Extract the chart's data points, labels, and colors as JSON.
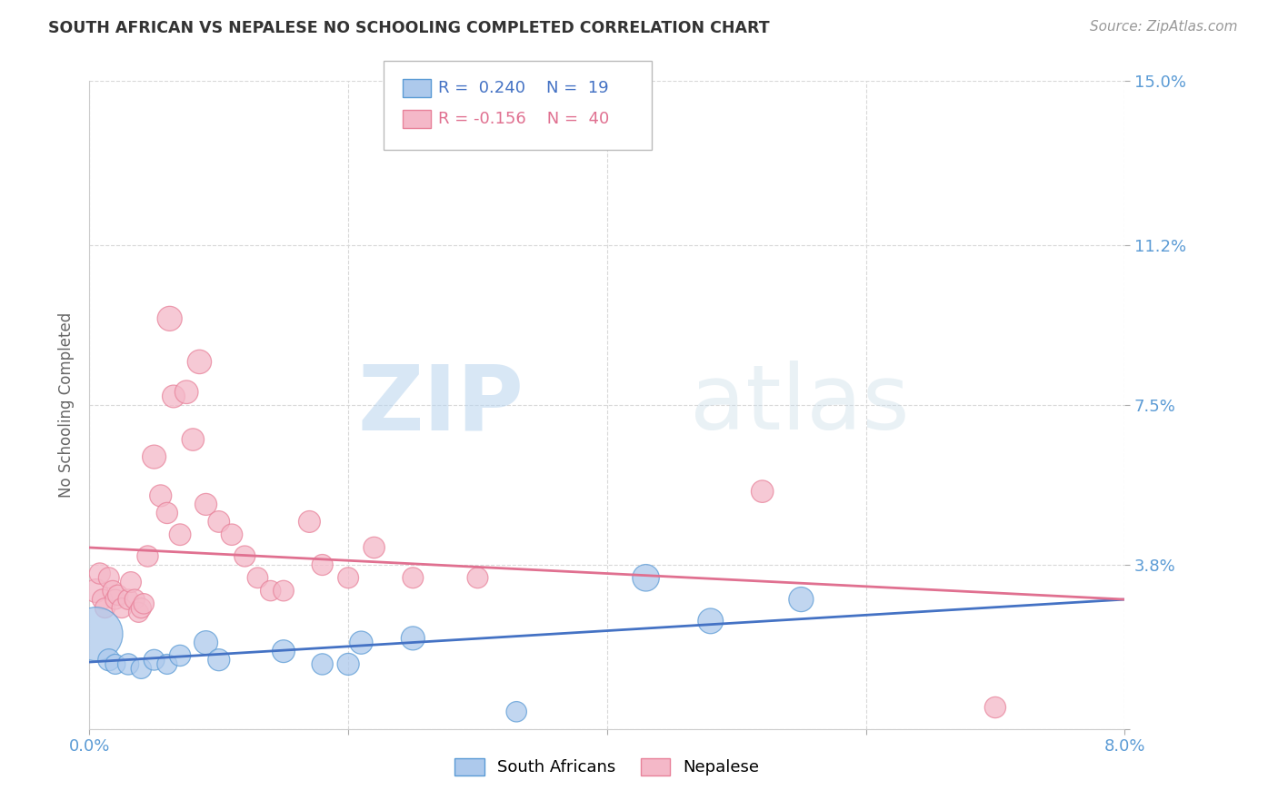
{
  "title": "SOUTH AFRICAN VS NEPALESE NO SCHOOLING COMPLETED CORRELATION CHART",
  "source": "Source: ZipAtlas.com",
  "ylabel": "No Schooling Completed",
  "xlim": [
    0.0,
    8.0
  ],
  "ylim": [
    0.0,
    15.0
  ],
  "yticks": [
    0.0,
    3.8,
    7.5,
    11.2,
    15.0
  ],
  "ytick_labels": [
    "",
    "3.8%",
    "7.5%",
    "11.2%",
    "15.0%"
  ],
  "xticks": [
    0.0,
    2.0,
    4.0,
    6.0,
    8.0
  ],
  "xtick_labels": [
    "0.0%",
    "",
    "",
    "",
    "8.0%"
  ],
  "background_color": "#ffffff",
  "grid_color": "#d8d8d8",
  "title_color": "#333333",
  "axis_tick_color": "#5b9bd5",
  "sa_color": "#adc9ec",
  "nep_color": "#f4b8c8",
  "sa_edge_color": "#5b9bd5",
  "nep_edge_color": "#e8829a",
  "sa_line_color": "#4472c4",
  "nep_line_color": "#e07090",
  "watermark_color": "#cde4f5",
  "sa_r": "0.240",
  "sa_n": "19",
  "nep_r": "-0.156",
  "nep_n": "40",
  "sa_data": [
    [
      0.05,
      2.2
    ],
    [
      0.15,
      1.6
    ],
    [
      0.2,
      1.5
    ],
    [
      0.3,
      1.5
    ],
    [
      0.4,
      1.4
    ],
    [
      0.5,
      1.6
    ],
    [
      0.6,
      1.5
    ],
    [
      0.7,
      1.7
    ],
    [
      0.9,
      2.0
    ],
    [
      1.0,
      1.6
    ],
    [
      1.5,
      1.8
    ],
    [
      1.8,
      1.5
    ],
    [
      2.0,
      1.5
    ],
    [
      2.1,
      2.0
    ],
    [
      2.5,
      2.1
    ],
    [
      3.3,
      0.4
    ],
    [
      4.3,
      3.5
    ],
    [
      4.8,
      2.5
    ],
    [
      5.5,
      3.0
    ]
  ],
  "sa_sizes": [
    1800,
    300,
    250,
    280,
    260,
    270,
    250,
    280,
    350,
    300,
    320,
    280,
    300,
    330,
    350,
    260,
    450,
    400,
    380
  ],
  "nep_data": [
    [
      0.05,
      3.2
    ],
    [
      0.08,
      3.6
    ],
    [
      0.1,
      3.0
    ],
    [
      0.12,
      2.8
    ],
    [
      0.15,
      3.5
    ],
    [
      0.18,
      3.2
    ],
    [
      0.2,
      3.0
    ],
    [
      0.22,
      3.1
    ],
    [
      0.25,
      2.8
    ],
    [
      0.3,
      3.0
    ],
    [
      0.32,
      3.4
    ],
    [
      0.35,
      3.0
    ],
    [
      0.38,
      2.7
    ],
    [
      0.4,
      2.8
    ],
    [
      0.42,
      2.9
    ],
    [
      0.45,
      4.0
    ],
    [
      0.5,
      6.3
    ],
    [
      0.55,
      5.4
    ],
    [
      0.6,
      5.0
    ],
    [
      0.62,
      9.5
    ],
    [
      0.65,
      7.7
    ],
    [
      0.7,
      4.5
    ],
    [
      0.75,
      7.8
    ],
    [
      0.8,
      6.7
    ],
    [
      0.85,
      8.5
    ],
    [
      0.9,
      5.2
    ],
    [
      1.0,
      4.8
    ],
    [
      1.1,
      4.5
    ],
    [
      1.2,
      4.0
    ],
    [
      1.3,
      3.5
    ],
    [
      1.4,
      3.2
    ],
    [
      1.5,
      3.2
    ],
    [
      1.7,
      4.8
    ],
    [
      1.8,
      3.8
    ],
    [
      2.0,
      3.5
    ],
    [
      2.2,
      4.2
    ],
    [
      2.5,
      3.5
    ],
    [
      3.0,
      3.5
    ],
    [
      5.2,
      5.5
    ],
    [
      7.0,
      0.5
    ]
  ],
  "nep_sizes": [
    350,
    280,
    260,
    250,
    270,
    260,
    250,
    260,
    250,
    260,
    270,
    255,
    250,
    255,
    260,
    280,
    350,
    300,
    280,
    380,
    320,
    290,
    340,
    310,
    360,
    300,
    290,
    285,
    275,
    265,
    260,
    265,
    295,
    275,
    270,
    285,
    270,
    270,
    310,
    280
  ],
  "sa_line_x0": 0.0,
  "sa_line_x1": 8.0,
  "sa_line_y0": 1.55,
  "sa_line_y1": 3.0,
  "nep_line_x0": 0.0,
  "nep_line_x1": 8.0,
  "nep_line_y0": 4.2,
  "nep_line_y1": 3.0
}
